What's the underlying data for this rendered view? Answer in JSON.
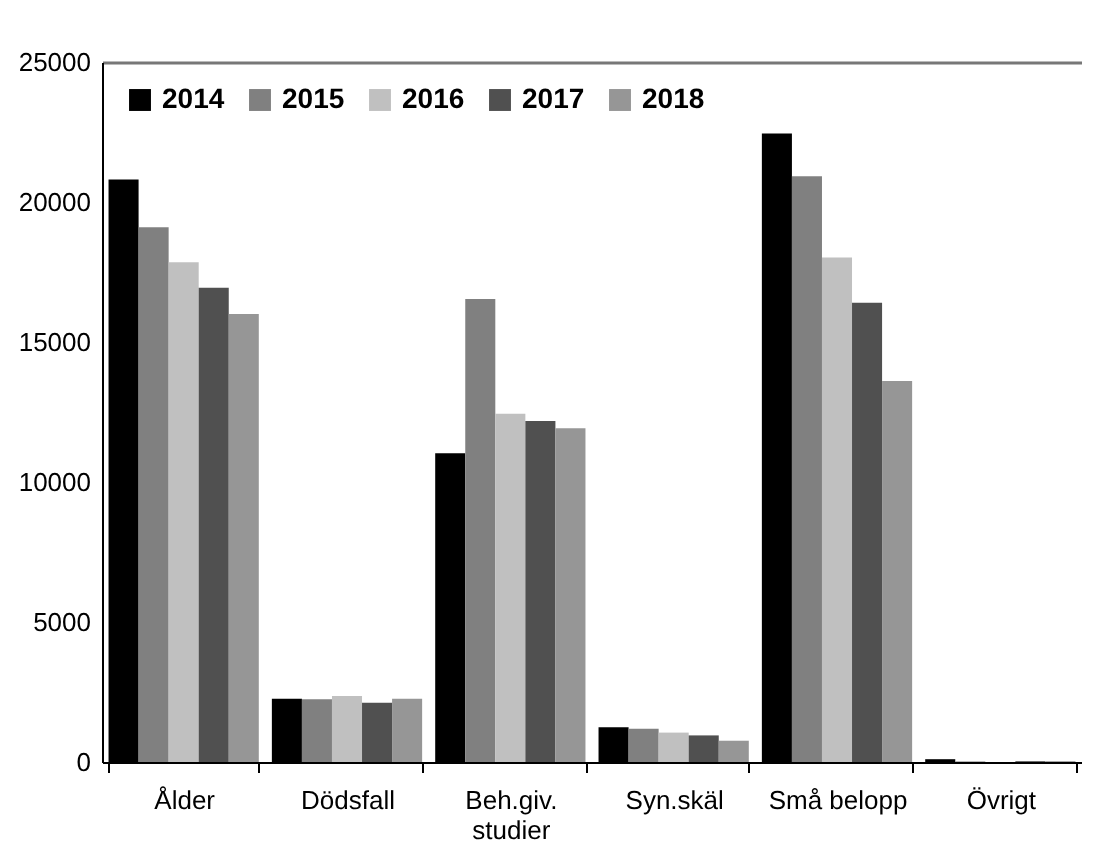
{
  "chart_data": {
    "type": "bar",
    "categories": [
      "Ålder",
      "Dödsfall",
      "Beh.giv.\nstudier",
      "Syn.skäl",
      "Små belopp",
      "Övrigt"
    ],
    "series": [
      {
        "name": "2014",
        "color": "#000000",
        "values": [
          20800,
          2260,
          11030,
          1240,
          22450,
          100
        ]
      },
      {
        "name": "2015",
        "color": "#808080",
        "values": [
          19100,
          2240,
          16540,
          1190,
          20920,
          20
        ]
      },
      {
        "name": "2016",
        "color": "#c0c0c0",
        "values": [
          17850,
          2360,
          12440,
          1050,
          18020,
          null
        ]
      },
      {
        "name": "2017",
        "color": "#505050",
        "values": [
          16940,
          2120,
          12180,
          950,
          16400,
          30
        ]
      },
      {
        "name": "2018",
        "color": "#969696",
        "values": [
          16000,
          2260,
          11920,
          760,
          13610,
          30
        ]
      }
    ],
    "ylim": [
      0,
      25000
    ],
    "yticks": [
      0,
      5000,
      10000,
      15000,
      20000,
      25000
    ],
    "grid": false,
    "legend": "top left"
  }
}
